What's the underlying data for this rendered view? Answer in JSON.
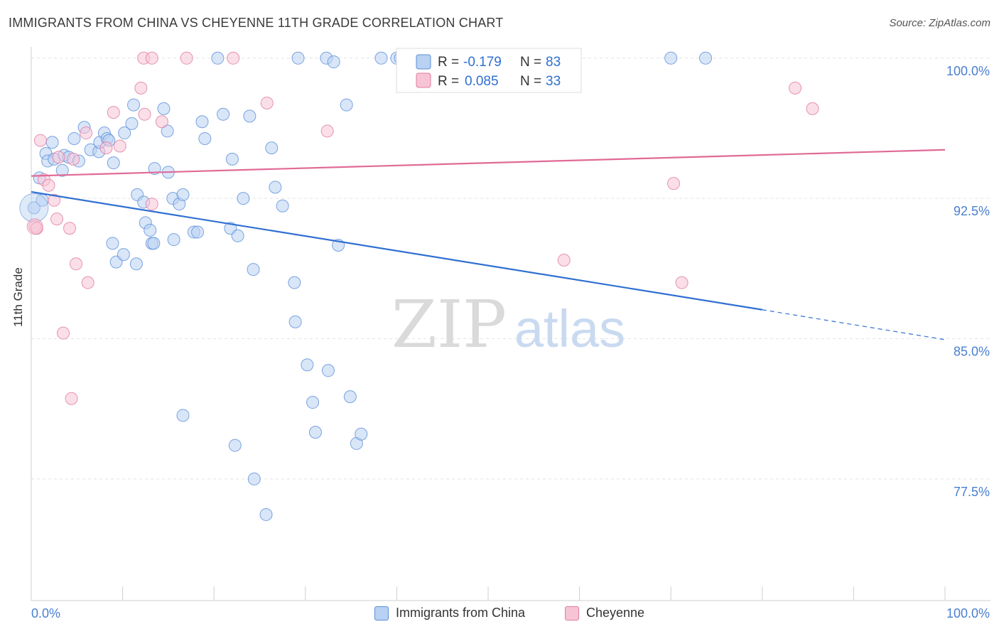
{
  "header": {
    "title": "IMMIGRANTS FROM CHINA VS CHEYENNE 11TH GRADE CORRELATION CHART",
    "source": "Source: ZipAtlas.com"
  },
  "watermark": {
    "part1": "ZIP",
    "part2": "atlas"
  },
  "chart_data": {
    "type": "scatter",
    "title": "IMMIGRANTS FROM CHINA VS CHEYENNE 11TH GRADE CORRELATION CHART",
    "ylabel": "11th Grade",
    "xlabel": "",
    "xlim": [
      0,
      100
    ],
    "ylim": [
      71.0,
      100.6
    ],
    "x_tick_labels": [
      "0.0%",
      "100.0%"
    ],
    "y_ticks": [
      {
        "value": 100.0,
        "label": "100.0%"
      },
      {
        "value": 92.5,
        "label": "92.5%"
      },
      {
        "value": 85.0,
        "label": "85.0%"
      },
      {
        "value": 77.5,
        "label": "77.5%"
      }
    ],
    "grid": "horizontal dashed",
    "legend_position": "top-center",
    "series": [
      {
        "name": "Immigrants from China",
        "color": "#5b8fd9",
        "fill": "#b9d1f2",
        "R": "-0.179",
        "N": "83",
        "trend": {
          "x0": 0,
          "y0": 92.85,
          "x1": 80,
          "y1": 86.55,
          "dashed_to_x": 100,
          "dashed_to_y": 84.95
        },
        "points": [
          [
            0.3,
            92.0
          ],
          [
            0.9,
            93.6
          ],
          [
            1.2,
            92.4
          ],
          [
            1.6,
            94.9
          ],
          [
            1.8,
            94.5
          ],
          [
            2.3,
            95.5
          ],
          [
            2.5,
            94.6
          ],
          [
            3.4,
            94.0
          ],
          [
            3.6,
            94.8
          ],
          [
            4.1,
            94.7
          ],
          [
            4.7,
            95.7
          ],
          [
            5.2,
            94.5
          ],
          [
            5.8,
            96.3
          ],
          [
            6.5,
            95.1
          ],
          [
            7.4,
            95.0
          ],
          [
            7.5,
            95.5
          ],
          [
            8.0,
            96.0
          ],
          [
            8.3,
            95.7
          ],
          [
            8.5,
            95.6
          ],
          [
            9.0,
            94.4
          ],
          [
            10.2,
            96.0
          ],
          [
            11.0,
            96.5
          ],
          [
            11.2,
            97.5
          ],
          [
            11.6,
            92.7
          ],
          [
            12.3,
            92.3
          ],
          [
            12.5,
            91.2
          ],
          [
            13.0,
            90.8
          ],
          [
            13.2,
            90.1
          ],
          [
            13.4,
            90.1
          ],
          [
            13.5,
            94.1
          ],
          [
            14.5,
            97.3
          ],
          [
            14.9,
            96.1
          ],
          [
            15.0,
            93.9
          ],
          [
            15.5,
            92.5
          ],
          [
            15.6,
            90.3
          ],
          [
            16.2,
            92.2
          ],
          [
            16.6,
            92.7
          ],
          [
            17.8,
            90.7
          ],
          [
            18.2,
            90.7
          ],
          [
            18.7,
            96.6
          ],
          [
            19.0,
            95.7
          ],
          [
            20.4,
            100.0
          ],
          [
            21.0,
            97.0
          ],
          [
            21.8,
            90.9
          ],
          [
            22.0,
            94.6
          ],
          [
            22.6,
            90.5
          ],
          [
            23.2,
            92.5
          ],
          [
            23.9,
            96.9
          ],
          [
            24.3,
            88.7
          ],
          [
            26.3,
            95.2
          ],
          [
            26.7,
            93.1
          ],
          [
            27.5,
            92.1
          ],
          [
            28.8,
            88.0
          ],
          [
            28.9,
            85.9
          ],
          [
            29.2,
            100.0
          ],
          [
            30.2,
            83.6
          ],
          [
            30.8,
            81.6
          ],
          [
            31.1,
            80.0
          ],
          [
            32.3,
            100.0
          ],
          [
            32.5,
            83.3
          ],
          [
            33.1,
            99.8
          ],
          [
            33.6,
            90.0
          ],
          [
            34.5,
            97.5
          ],
          [
            34.9,
            81.9
          ],
          [
            35.6,
            79.4
          ],
          [
            36.1,
            79.9
          ],
          [
            38.3,
            100.0
          ],
          [
            40.0,
            100.0
          ],
          [
            40.4,
            100.0
          ],
          [
            41.0,
            100.0
          ],
          [
            42.3,
            100.0
          ],
          [
            43.1,
            100.0
          ],
          [
            46.0,
            100.0
          ],
          [
            70.0,
            100.0
          ],
          [
            73.8,
            100.0
          ],
          [
            8.9,
            90.1
          ],
          [
            9.3,
            89.1
          ],
          [
            10.1,
            89.5
          ],
          [
            11.5,
            89.0
          ],
          [
            16.6,
            80.9
          ],
          [
            22.3,
            79.3
          ],
          [
            24.4,
            77.5
          ],
          [
            25.7,
            75.6
          ]
        ]
      },
      {
        "name": "Cheyenne",
        "color": "#e07aa0",
        "fill": "#f7c4d5",
        "R": "0.085",
        "N": "33",
        "trend": {
          "x0": 0,
          "y0": 93.7,
          "x1": 100,
          "y1": 95.1
        },
        "points": [
          [
            0.4,
            91.0
          ],
          [
            0.6,
            90.9
          ],
          [
            1.0,
            95.6
          ],
          [
            1.4,
            93.5
          ],
          [
            1.9,
            93.2
          ],
          [
            2.5,
            92.4
          ],
          [
            2.8,
            91.4
          ],
          [
            3.0,
            94.7
          ],
          [
            3.5,
            85.3
          ],
          [
            4.2,
            90.9
          ],
          [
            4.6,
            94.6
          ],
          [
            4.9,
            89.0
          ],
          [
            6.0,
            96.0
          ],
          [
            6.2,
            88.0
          ],
          [
            8.2,
            95.2
          ],
          [
            9.0,
            97.1
          ],
          [
            9.7,
            95.3
          ],
          [
            12.0,
            98.4
          ],
          [
            12.4,
            97.0
          ],
          [
            13.2,
            92.2
          ],
          [
            14.3,
            96.6
          ],
          [
            17.0,
            100.0
          ],
          [
            25.8,
            97.6
          ],
          [
            32.4,
            96.1
          ],
          [
            58.3,
            89.2
          ],
          [
            70.3,
            93.3
          ],
          [
            71.2,
            88.0
          ],
          [
            83.6,
            98.4
          ],
          [
            85.5,
            97.3
          ],
          [
            4.4,
            81.8
          ],
          [
            12.3,
            100.0
          ],
          [
            13.2,
            100.0
          ],
          [
            22.1,
            100.0
          ]
        ]
      }
    ]
  },
  "legend_top": [
    {
      "r_label": "R =",
      "r_value": "-0.179",
      "n_label": "N =",
      "n_value": "83"
    },
    {
      "r_label": "R =",
      "r_value": "0.085",
      "n_label": "N =",
      "n_value": "33"
    }
  ],
  "legend_bottom": [
    "Immigrants from China",
    "Cheyenne"
  ]
}
